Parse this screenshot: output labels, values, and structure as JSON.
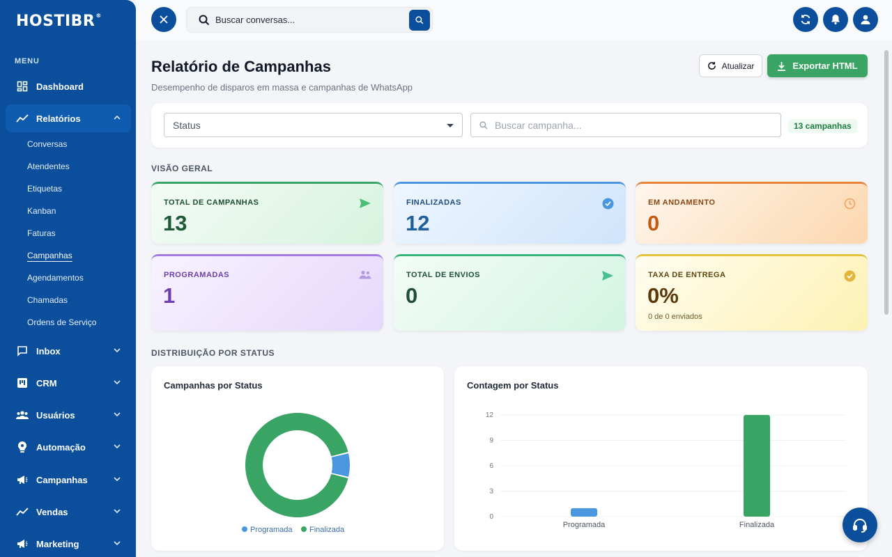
{
  "brand": {
    "logo_text": "HOSTIBR",
    "logo_mark": "®"
  },
  "sidebar": {
    "menu_label": "MENU",
    "items": [
      {
        "label": "Dashboard",
        "icon": "dashboard-icon"
      },
      {
        "label": "Relatórios",
        "icon": "chart-line-icon",
        "expanded": true
      },
      {
        "label": "Inbox",
        "icon": "chat-icon"
      },
      {
        "label": "CRM",
        "icon": "kanban-icon"
      },
      {
        "label": "Usuários",
        "icon": "users-icon"
      },
      {
        "label": "Automação",
        "icon": "bulb-icon"
      },
      {
        "label": "Campanhas",
        "icon": "megaphone-icon"
      },
      {
        "label": "Vendas",
        "icon": "trending-icon"
      },
      {
        "label": "Marketing",
        "icon": "megaphone-icon"
      }
    ],
    "subitems": [
      "Conversas",
      "Atendentes",
      "Etiquetas",
      "Kanban",
      "Faturas",
      "Campanhas",
      "Agendamentos",
      "Chamadas",
      "Ordens de Serviço"
    ],
    "current_subitem": "Campanhas"
  },
  "topbar": {
    "search_placeholder": "Buscar conversas..."
  },
  "header": {
    "title": "Relatório de Campanhas",
    "subtitle": "Desempenho de disparos em massa e campanhas de WhatsApp",
    "refresh_label": "Atualizar",
    "export_label": "Exportar HTML"
  },
  "filters": {
    "status_label": "Status",
    "search_placeholder": "Buscar campanha...",
    "count_badge": "13 campanhas"
  },
  "overview": {
    "section_title": "VISÃO GERAL",
    "cards": [
      {
        "label": "TOTAL DE CAMPANHAS",
        "value": "13",
        "icon": "send-icon",
        "color": "#2e9c5a"
      },
      {
        "label": "FINALIZADAS",
        "value": "12",
        "icon": "check-circle-icon",
        "color": "#2f6fb0"
      },
      {
        "label": "EM ANDAMENTO",
        "value": "0",
        "icon": "clock-icon",
        "color": "#d9731f"
      },
      {
        "label": "PROGRAMADAS",
        "value": "1",
        "icon": "users-icon",
        "color": "#8a5cc7"
      },
      {
        "label": "TOTAL DE ENVIOS",
        "value": "0",
        "icon": "send-icon",
        "color": "#2b9a7a"
      },
      {
        "label": "TAXA DE ENTREGA",
        "value": "0%",
        "sub": "0 de 0 enviados",
        "icon": "check-circle-icon",
        "color": "#d9a526"
      }
    ]
  },
  "distribution": {
    "section_title": "DISTRIBUIÇÃO POR STATUS"
  },
  "chart_data": [
    {
      "type": "pie",
      "title": "Campanhas por Status",
      "categories": [
        "Programada",
        "Finalizada"
      ],
      "values": [
        1,
        12
      ],
      "colors": [
        "#4a97e0",
        "#3aa464"
      ],
      "legend": "bottom"
    },
    {
      "type": "bar",
      "title": "Contagem por Status",
      "categories": [
        "Programada",
        "Finalizada"
      ],
      "values": [
        1,
        12
      ],
      "colors": [
        "#4a97e0",
        "#3aa464"
      ],
      "y_ticks": [
        "0",
        "3",
        "6",
        "9",
        "12"
      ],
      "ylim": [
        0,
        12
      ],
      "grid": true
    }
  ]
}
